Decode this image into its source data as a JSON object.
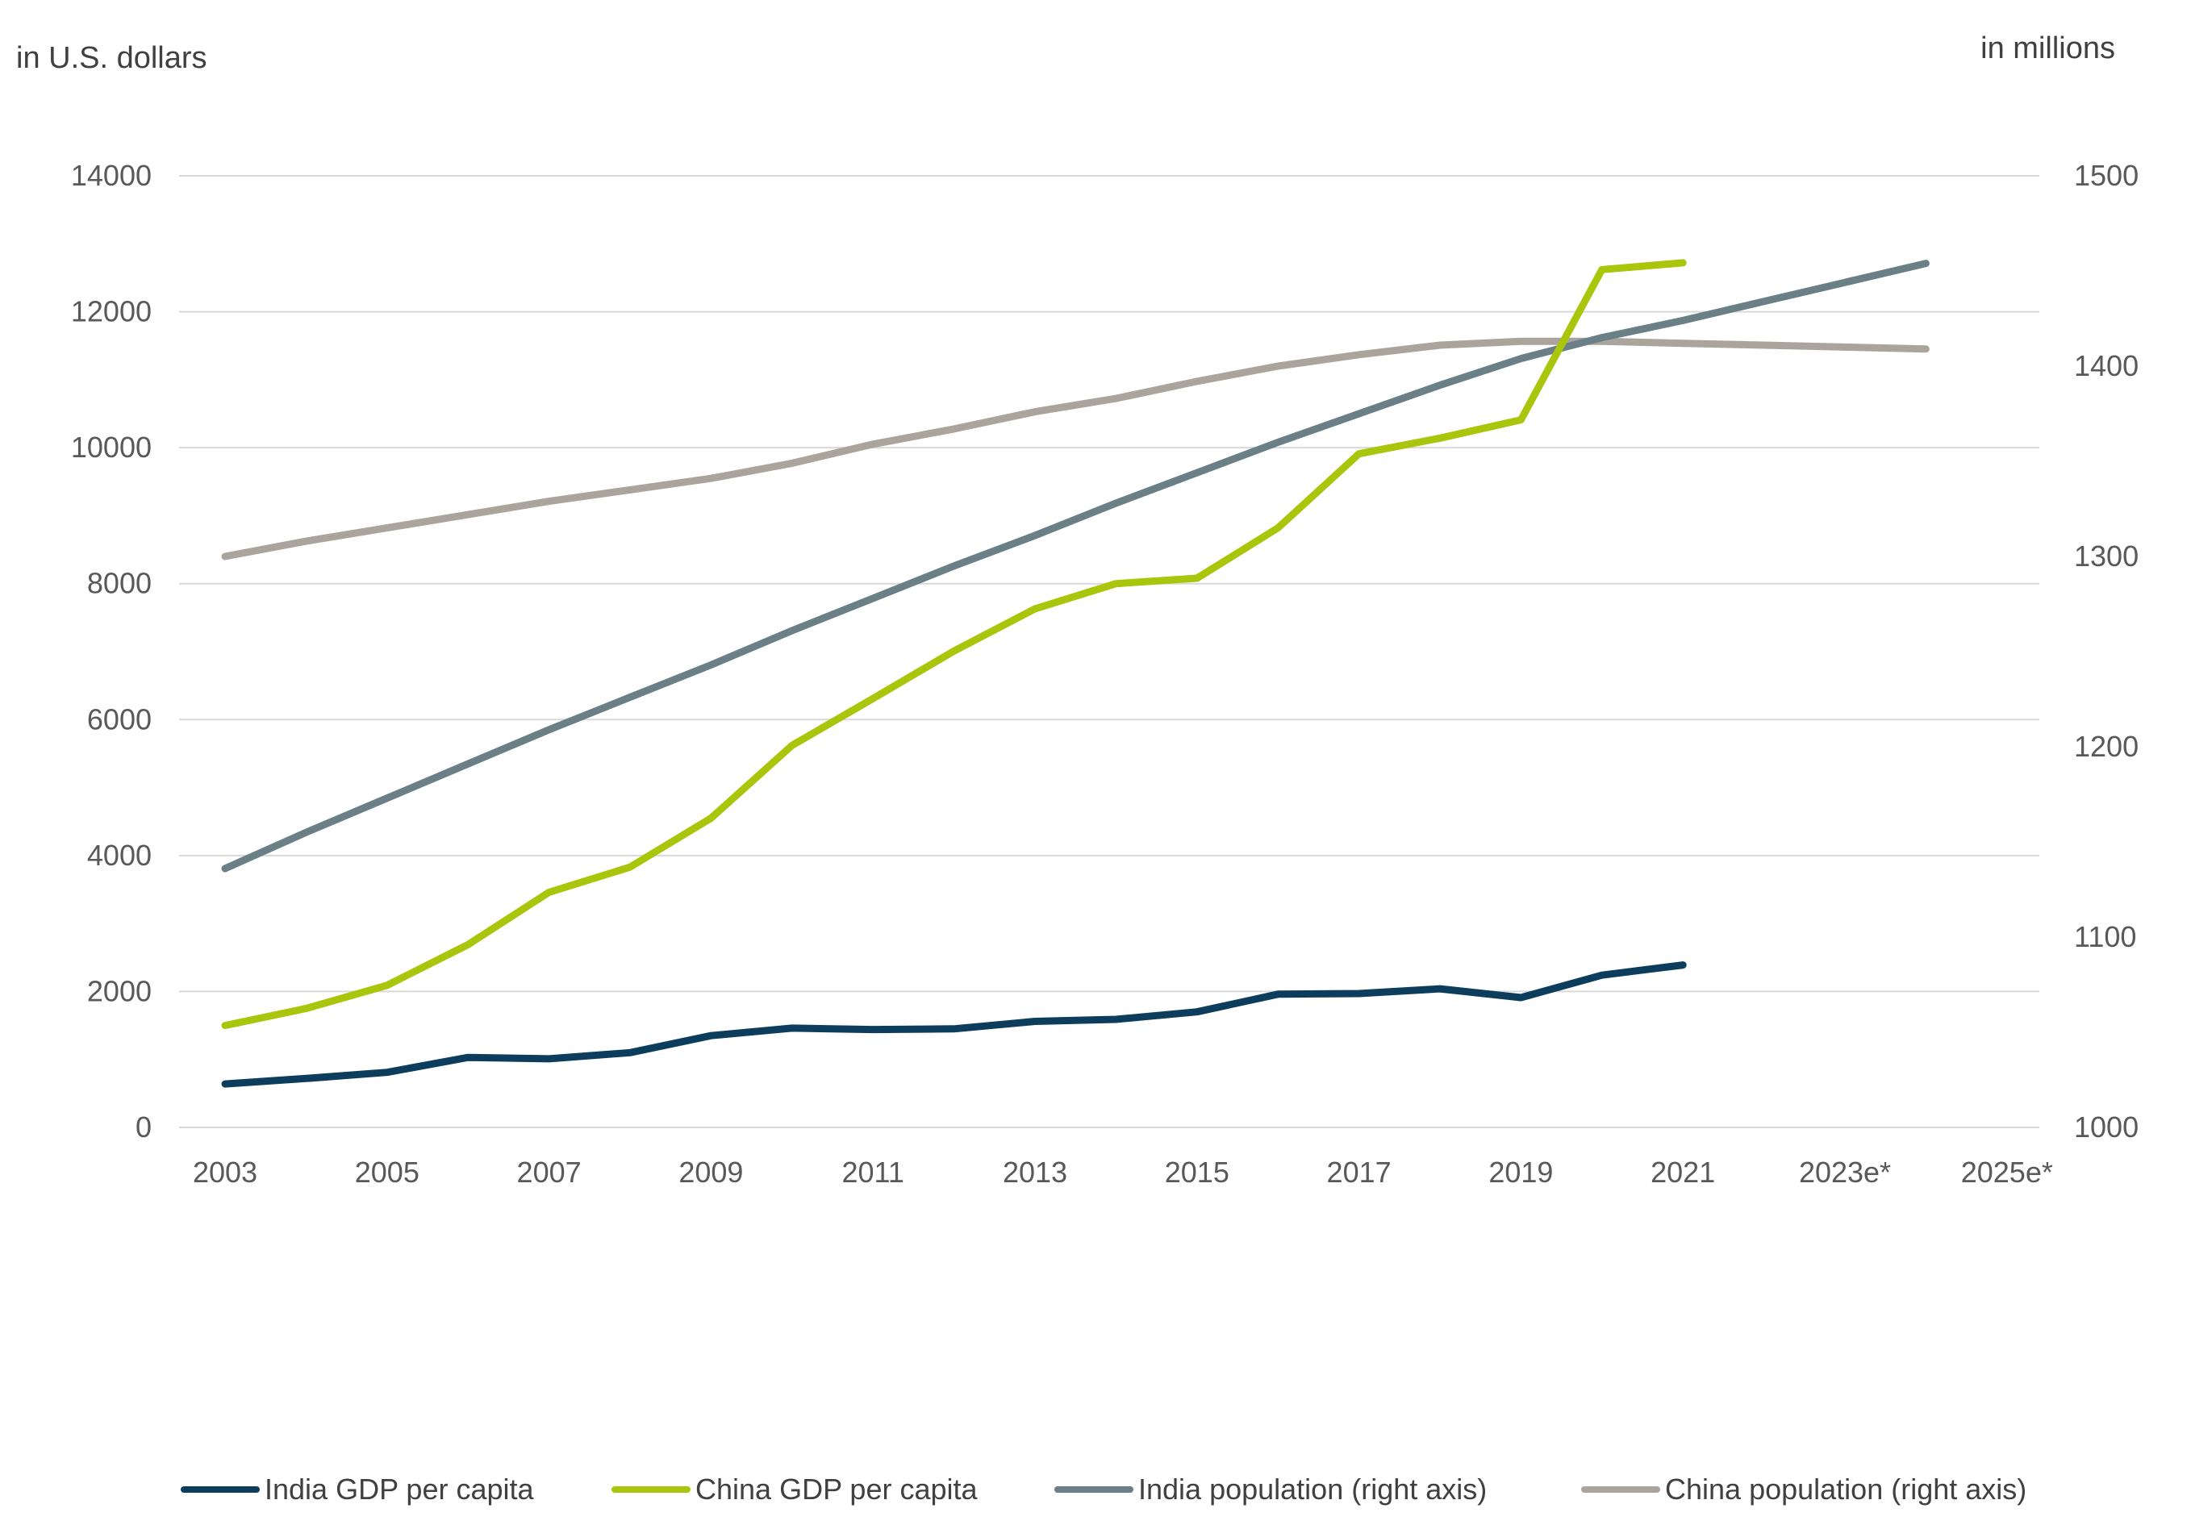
{
  "chart_data": {
    "type": "line",
    "y_left_label": "in U.S. dollars",
    "y_right_label": "in millions",
    "y_left_ticks": [
      "0",
      "2000",
      "4000",
      "6000",
      "8000",
      "10000",
      "12000",
      "14000"
    ],
    "y_right_ticks": [
      "1000",
      "1100",
      "1200",
      "1300",
      "1400",
      "1500"
    ],
    "ylim_left": [
      0,
      14000
    ],
    "ylim_right": [
      1000,
      1500
    ],
    "x_tick_labels": [
      "2003",
      "2005",
      "2007",
      "2009",
      "2011",
      "2013",
      "2015",
      "2017",
      "2019",
      "2021",
      "2023e*",
      "2025e*"
    ],
    "x_years": [
      2003,
      2004,
      2005,
      2006,
      2007,
      2008,
      2009,
      2010,
      2011,
      2012,
      2013,
      2014,
      2015,
      2016,
      2017,
      2018,
      2019,
      2020,
      2021,
      2022,
      2023,
      2024,
      2025
    ],
    "series": [
      {
        "name": "India GDP per capita",
        "axis": "left",
        "color": "#0d3d5c",
        "values": [
          640,
          720,
          810,
          1030,
          1010,
          1100,
          1350,
          1460,
          1440,
          1450,
          1560,
          1590,
          1700,
          1960,
          1970,
          2040,
          1910,
          2240,
          2390,
          null,
          null,
          null,
          null
        ]
      },
      {
        "name": "China GDP per capita",
        "axis": "left",
        "color": "#a9c60c",
        "values": [
          1500,
          1750,
          2090,
          2690,
          3460,
          3830,
          4550,
          5620,
          6310,
          7010,
          7630,
          8000,
          8080,
          8820,
          9910,
          10140,
          10410,
          12620,
          12720,
          null,
          null,
          null,
          null
        ]
      },
      {
        "name": "India population (right axis)",
        "axis": "right",
        "color": "#6b7f86",
        "values": [
          1136,
          1155,
          1173,
          1191,
          1209,
          1226,
          1243,
          1261,
          1278,
          1295,
          1311,
          1328,
          1344,
          1360,
          1375,
          1390,
          1404,
          1415,
          1424,
          1434,
          1444,
          1454,
          null
        ]
      },
      {
        "name": "China population (right axis)",
        "axis": "right",
        "color": "#aba49d",
        "values": [
          1300,
          1308,
          1315,
          1322,
          1329,
          1335,
          1341,
          1349,
          1359,
          1367,
          1376,
          1383,
          1392,
          1400,
          1406,
          1411,
          1413,
          1413,
          1412,
          1411,
          1410,
          1409,
          null
        ]
      }
    ],
    "legend_position": "bottom"
  }
}
